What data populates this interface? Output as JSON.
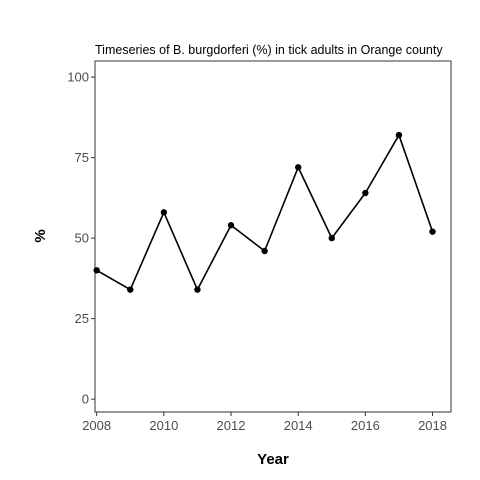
{
  "chart_data": {
    "type": "line",
    "title": "Timeseries of B. burgdorferi (%) in tick adults in Orange county",
    "xlabel": "Year",
    "ylabel": "%",
    "x": [
      2008,
      2009,
      2010,
      2011,
      2012,
      2013,
      2014,
      2015,
      2016,
      2017,
      2018
    ],
    "series": [
      {
        "values": [
          40,
          34,
          58,
          34,
          54,
          46,
          72,
          50,
          64,
          82,
          52
        ]
      }
    ],
    "xlim": [
      2007.95,
      2018.55
    ],
    "ylim": [
      -4,
      105
    ],
    "x_ticks": [
      2008,
      2010,
      2012,
      2014,
      2016,
      2018
    ],
    "y_ticks": [
      0,
      25,
      50,
      75,
      100
    ],
    "grid": false,
    "legend": "none",
    "colors": {
      "line": "#000000",
      "point": "#000000",
      "frame": "#333333",
      "tick_text": "#4d4d4d"
    }
  }
}
